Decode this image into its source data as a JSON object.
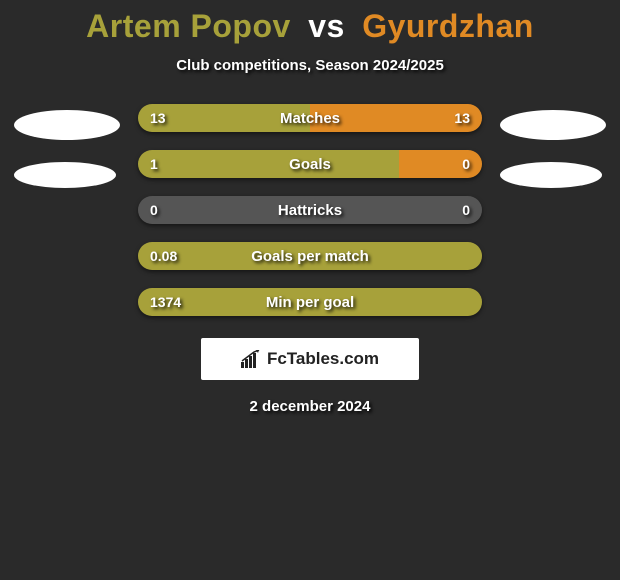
{
  "background_color": "#2a2a2a",
  "title": {
    "player1": "Artem Popov",
    "vs": "vs",
    "player2": "Gyurdzhan",
    "player1_color": "#a7a13a",
    "vs_color": "#ffffff",
    "player2_color": "#e08a24",
    "fontsize": 32
  },
  "subtitle": "Club competitions, Season 2024/2025",
  "avatars": {
    "left": [
      {
        "width": 106,
        "height": 30,
        "color": "#ffffff"
      },
      {
        "width": 102,
        "height": 26,
        "color": "#ffffff"
      }
    ],
    "right": [
      {
        "width": 106,
        "height": 30,
        "color": "#ffffff"
      },
      {
        "width": 102,
        "height": 26,
        "color": "#ffffff"
      }
    ]
  },
  "bars": {
    "left_color": "#a7a13a",
    "right_color": "#e08a24",
    "neutral_color": "#555555",
    "track_height": 28,
    "label_color": "#ffffff",
    "rows": [
      {
        "label": "Matches",
        "left_value": "13",
        "right_value": "13",
        "left_pct": 50,
        "right_pct": 50
      },
      {
        "label": "Goals",
        "left_value": "1",
        "right_value": "0",
        "left_pct": 76,
        "right_pct": 24
      },
      {
        "label": "Hattricks",
        "left_value": "0",
        "right_value": "0",
        "left_pct": 0,
        "right_pct": 0
      },
      {
        "label": "Goals per match",
        "left_value": "0.08",
        "right_value": "",
        "left_pct": 100,
        "right_pct": 0
      },
      {
        "label": "Min per goal",
        "left_value": "1374",
        "right_value": "",
        "left_pct": 100,
        "right_pct": 0
      }
    ]
  },
  "brand": {
    "text": "FcTables.com",
    "box_bg": "#ffffff",
    "text_color": "#222222",
    "icon_color": "#222222"
  },
  "date": "2 december 2024"
}
